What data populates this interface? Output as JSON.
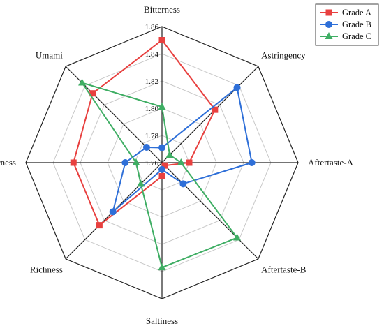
{
  "chart_data": {
    "type": "radar",
    "axes": [
      "Bitterness",
      "Astringency",
      "Aftertaste-A",
      "Aftertaste-B",
      "Saltiness",
      "Richness",
      "Sourness",
      "Umami"
    ],
    "rlim": [
      1.76,
      1.86
    ],
    "ticks": [
      "1.76",
      "1.78",
      "1.80",
      "1.82",
      "1.84",
      "1.86"
    ],
    "series": [
      {
        "name": "Grade A",
        "color": "#e8403f",
        "marker": "square",
        "values": [
          1.85,
          1.815,
          1.78,
          1.763,
          1.77,
          1.825,
          1.825,
          1.832
        ]
      },
      {
        "name": "Grade B",
        "color": "#2e6fd8",
        "marker": "circle",
        "values": [
          1.771,
          1.838,
          1.826,
          1.782,
          1.765,
          1.811,
          1.787,
          1.776
        ]
      },
      {
        "name": "Grade C",
        "color": "#3fae64",
        "marker": "triangle",
        "values": [
          1.801,
          1.768,
          1.774,
          1.838,
          1.837,
          1.782,
          1.779,
          1.843
        ]
      }
    ],
    "grid": true,
    "legend_position": "top-right"
  }
}
